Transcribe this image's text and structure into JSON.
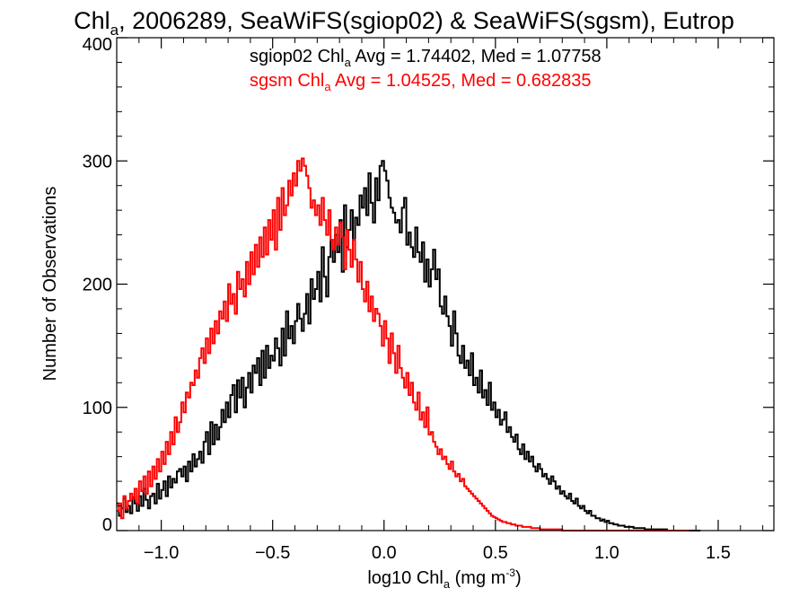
{
  "chart_data": {
    "type": "line",
    "title_main": "Chl",
    "title_sub": "a",
    "title_rest": ", 2006289, SeaWiFS(sgiop02) & SeaWiFS(sgsm), Eutrop",
    "xlabel_main": "log10 Chl",
    "xlabel_sub": "a",
    "xlabel_units": " (mg m",
    "xlabel_sup": "-3",
    "xlabel_close": ")",
    "ylabel": "Number of Observations",
    "xlim": [
      -1.2,
      1.75
    ],
    "ylim": [
      0,
      400
    ],
    "x_ticks": [
      -1.0,
      -0.5,
      0.0,
      0.5,
      1.0,
      1.5
    ],
    "x_tick_labels": [
      "−1.0",
      "−0.5",
      "0.0",
      "0.5",
      "1.0",
      "1.5"
    ],
    "y_ticks": [
      0,
      100,
      200,
      300,
      400
    ],
    "y_tick_labels": [
      "0",
      "100",
      "200",
      "300",
      "400"
    ],
    "grid": false,
    "annotations": [
      {
        "main": "sgiop02 Chl",
        "sub": "a",
        "rest": " Avg = 1.74402, Med = 1.07758",
        "color": "#000000"
      },
      {
        "main": "sgsm Chl",
        "sub": "a",
        "rest": " Avg = 1.04525, Med = 0.682835",
        "color": "#ff0000"
      }
    ],
    "series": [
      {
        "color": "#000000",
        "bin_width": 0.01,
        "x_start": -1.2,
        "values": [
          22,
          12,
          18,
          26,
          15,
          20,
          14,
          27,
          22,
          16,
          28,
          20,
          34,
          25,
          18,
          28,
          30,
          22,
          38,
          26,
          33,
          40,
          28,
          44,
          35,
          42,
          39,
          48,
          50,
          44,
          52,
          40,
          56,
          48,
          62,
          52,
          58,
          64,
          55,
          72,
          80,
          62,
          88,
          70,
          86,
          74,
          84,
          98,
          88,
          104,
          92,
          110,
          118,
          96,
          122,
          108,
          124,
          100,
          116,
          128,
          112,
          134,
          128,
          140,
          118,
          146,
          124,
          150,
          132,
          142,
          138,
          156,
          148,
          134,
          164,
          142,
          178,
          156,
          166,
          152,
          170,
          184,
          172,
          162,
          176,
          192,
          168,
          204,
          188,
          196,
          210,
          186,
          230,
          206,
          190,
          222,
          236,
          218,
          240,
          226,
          252,
          210,
          264,
          230,
          244,
          260,
          236,
          254,
          248,
          272,
          262,
          278,
          256,
          290,
          266,
          250,
          286,
          268,
          296,
          300,
          292,
          284,
          270,
          262,
          258,
          250,
          252,
          242,
          262,
          270,
          232,
          242,
          230,
          222,
          246,
          226,
          218,
          234,
          202,
          220,
          198,
          212,
          228,
          204,
          212,
          182,
          176,
          190,
          174,
          166,
          150,
          178,
          160,
          142,
          136,
          150,
          132,
          138,
          126,
          144,
          118,
          124,
          112,
          130,
          108,
          114,
          102,
          120,
          98,
          104,
          92,
          98,
          86,
          90,
          96,
          80,
          84,
          76,
          72,
          78,
          66,
          62,
          70,
          58,
          64,
          56,
          60,
          52,
          48,
          54,
          50,
          44,
          46,
          42,
          38,
          44,
          40,
          34,
          36,
          30,
          32,
          28,
          26,
          30,
          24,
          22,
          26,
          20,
          18,
          20,
          16,
          14,
          16,
          12,
          12,
          10,
          10,
          8,
          9,
          7,
          8,
          6,
          6,
          5,
          5,
          4,
          4,
          4,
          3,
          3,
          3,
          3,
          2,
          2,
          2,
          2,
          2,
          1,
          1,
          1,
          1,
          1,
          1,
          1,
          1,
          1,
          1,
          0,
          0,
          0,
          0,
          0,
          0,
          0,
          0,
          0,
          0,
          0,
          0,
          0,
          0,
          0
        ]
      },
      {
        "color": "#ff0000",
        "bin_width": 0.01,
        "x_start": -1.2,
        "values": [
          16,
          22,
          10,
          28,
          18,
          24,
          30,
          26,
          34,
          22,
          40,
          32,
          44,
          30,
          48,
          36,
          52,
          42,
          58,
          48,
          64,
          54,
          72,
          62,
          80,
          70,
          92,
          80,
          88,
          104,
          96,
          112,
          108,
          120,
          118,
          130,
          124,
          140,
          148,
          136,
          156,
          144,
          164,
          152,
          170,
          160,
          178,
          172,
          186,
          170,
          200,
          184,
          192,
          176,
          210,
          196,
          204,
          190,
          218,
          200,
          226,
          208,
          232,
          214,
          238,
          222,
          246,
          224,
          252,
          236,
          260,
          228,
          270,
          244,
          278,
          256,
          264,
          284,
          272,
          290,
          280,
          300,
          292,
          302,
          296,
          288,
          278,
          262,
          268,
          256,
          264,
          248,
          270,
          252,
          240,
          260,
          236,
          228,
          246,
          232,
          250,
          238,
          212,
          244,
          228,
          214,
          236,
          220,
          202,
          218,
          196,
          186,
          202,
          178,
          190,
          170,
          180,
          176,
          166,
          150,
          170,
          156,
          136,
          160,
          144,
          128,
          150,
          132,
          124,
          116,
          128,
          110,
          120,
          104,
          98,
          112,
          90,
          96,
          84,
          100,
          78,
          80,
          72,
          68,
          62,
          66,
          58,
          60,
          54,
          50,
          56,
          48,
          44,
          46,
          40,
          42,
          36,
          34,
          32,
          30,
          28,
          26,
          24,
          22,
          20,
          18,
          16,
          14,
          12,
          11,
          10,
          9,
          8,
          7,
          7,
          6,
          6,
          5,
          5,
          4,
          4,
          4,
          3,
          3,
          3,
          3,
          2,
          2,
          2,
          2,
          1,
          1,
          1,
          1,
          1,
          1,
          1,
          1,
          1,
          1,
          0,
          0,
          0,
          0,
          0,
          0,
          0,
          0,
          0,
          0,
          0,
          0,
          0,
          0,
          0,
          0,
          0,
          0,
          0,
          0,
          0,
          0,
          0,
          0,
          0,
          0,
          0,
          0,
          0,
          0,
          0,
          0,
          0,
          0,
          0,
          0,
          0,
          0,
          0,
          0,
          0,
          0,
          0,
          0,
          0,
          0,
          0,
          0,
          0,
          0,
          0,
          0,
          0,
          0,
          0,
          0,
          0
        ]
      }
    ]
  }
}
